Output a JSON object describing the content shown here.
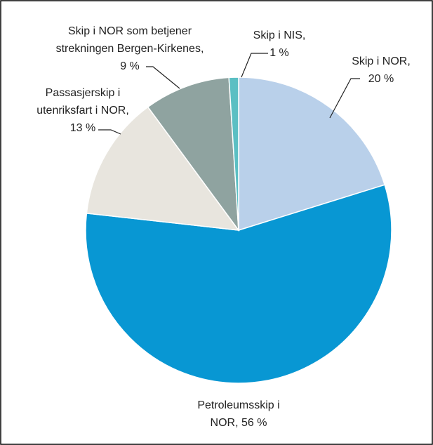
{
  "chart_data": {
    "type": "pie",
    "categories": [
      "Skip i NOR,",
      "Petroleumsskip i NOR,",
      "Passasjerskip i utenriksfart i NOR,",
      "Skip i NOR som betjener strekningen Bergen-Kirkenes,",
      "Skip i NIS,"
    ],
    "values": [
      20,
      56,
      13,
      9,
      1
    ],
    "value_labels": [
      "20 %",
      "56 %",
      "13 %",
      "9 %",
      "1 %"
    ],
    "colors": [
      "#b9d0ea",
      "#0897d3",
      "#e8e5de",
      "#8fa3a0",
      "#5bbfc3"
    ]
  }
}
